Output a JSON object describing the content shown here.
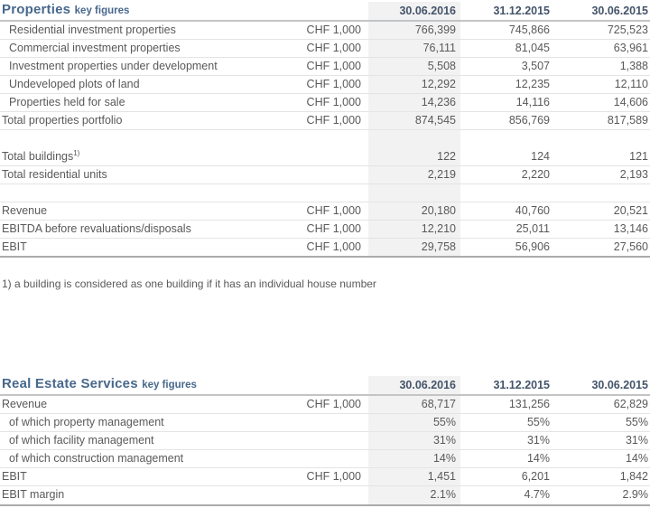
{
  "colors": {
    "title_accent": "#47688c",
    "column_header": "#44546a",
    "body_text": "#595959",
    "highlight_column_bg": "#f2f2f2",
    "row_border": "#e4e4e4",
    "header_border": "#c2c4c6",
    "table_end_border": "#a9abad"
  },
  "footnote": "1) a building is considered as one building if it has an individual house number",
  "tables": [
    {
      "title": "Properties",
      "subtitle": "key figures",
      "columns": [
        "30.06.2016",
        "31.12.2015",
        "30.06.2015"
      ],
      "rows": [
        {
          "label": "Residential investment properties",
          "indent": true,
          "unit": "CHF 1,000",
          "values": [
            "766,399",
            "745,866",
            "725,523"
          ]
        },
        {
          "label": "Commercial investment properties",
          "indent": true,
          "unit": "CHF 1,000",
          "values": [
            "76,111",
            "81,045",
            "63,961"
          ]
        },
        {
          "label": "Investment properties under development",
          "indent": true,
          "unit": "CHF 1,000",
          "values": [
            "5,508",
            "3,507",
            "1,388"
          ]
        },
        {
          "label": "Undeveloped plots of land",
          "indent": true,
          "unit": "CHF 1,000",
          "values": [
            "12,292",
            "12,235",
            "12,110"
          ]
        },
        {
          "label": "Properties held for sale",
          "indent": true,
          "unit": "CHF 1,000",
          "values": [
            "14,236",
            "14,116",
            "14,606"
          ]
        },
        {
          "label": "Total properties portfolio",
          "unit": "CHF 1,000",
          "values": [
            "874,545",
            "856,769",
            "817,589"
          ]
        },
        {
          "blank": true,
          "noborder": true
        },
        {
          "label": "Total buildings",
          "sup": "1)",
          "values": [
            "122",
            "124",
            "121"
          ]
        },
        {
          "label": "Total residential units",
          "values": [
            "2,219",
            "2,220",
            "2,193"
          ]
        },
        {
          "blank": true
        },
        {
          "label": "Revenue",
          "unit": "CHF 1,000",
          "values": [
            "20,180",
            "40,760",
            "20,521"
          ]
        },
        {
          "label": "EBITDA before revaluations/disposals",
          "unit": "CHF 1,000",
          "values": [
            "12,210",
            "25,011",
            "13,146"
          ]
        },
        {
          "label": "EBIT",
          "unit": "CHF 1,000",
          "values": [
            "29,758",
            "56,906",
            "27,560"
          ],
          "last": true
        }
      ]
    },
    {
      "title": "Real Estate Services",
      "subtitle": "key figures",
      "columns": [
        "30.06.2016",
        "31.12.2015",
        "30.06.2015"
      ],
      "rows": [
        {
          "label": "Revenue",
          "unit": "CHF 1,000",
          "values": [
            "68,717",
            "131,256",
            "62,829"
          ]
        },
        {
          "label": "of which property management",
          "indent": true,
          "values": [
            "55%",
            "55%",
            "55%"
          ]
        },
        {
          "label": "of which facility management",
          "indent": true,
          "values": [
            "31%",
            "31%",
            "31%"
          ]
        },
        {
          "label": "of which construction management",
          "indent": true,
          "values": [
            "14%",
            "14%",
            "14%"
          ]
        },
        {
          "label": "EBIT",
          "unit": "CHF 1,000",
          "values": [
            "1,451",
            "6,201",
            "1,842"
          ]
        },
        {
          "label": "EBIT margin",
          "values": [
            "2.1%",
            "4.7%",
            "2.9%"
          ],
          "last": true
        }
      ]
    }
  ]
}
